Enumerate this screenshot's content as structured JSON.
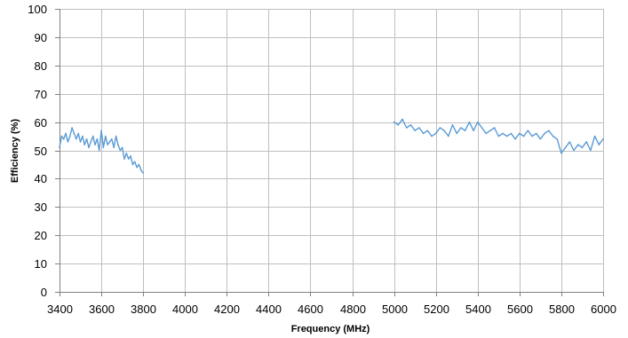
{
  "chart_data": {
    "type": "line",
    "title": "",
    "xlabel": "Frequency (MHz)",
    "ylabel": "Efficiency (%)",
    "xlim": [
      3400,
      6000
    ],
    "ylim": [
      0,
      100
    ],
    "x_ticks": [
      3400,
      3600,
      3800,
      4000,
      4200,
      4400,
      4600,
      4800,
      5000,
      5200,
      5400,
      5600,
      5800,
      6000
    ],
    "y_ticks": [
      0,
      10,
      20,
      30,
      40,
      50,
      60,
      70,
      80,
      90,
      100
    ],
    "grid": true,
    "legend": "none",
    "colors": {
      "series": "#5b9bd5",
      "grid": "#bfbfbf",
      "axis": "#808080"
    },
    "series": [
      {
        "x": [
          3400,
          3410,
          3420,
          3430,
          3440,
          3450,
          3460,
          3470,
          3480,
          3490,
          3500,
          3510,
          3520,
          3530,
          3540,
          3550,
          3560,
          3570,
          3580,
          3590,
          3600,
          3610,
          3620,
          3630,
          3640,
          3650,
          3660,
          3670,
          3680,
          3690,
          3700,
          3710,
          3720,
          3730,
          3740,
          3750,
          3760,
          3770,
          3780,
          3790,
          3800
        ],
        "y": [
          51,
          55,
          54,
          56,
          53,
          55,
          58,
          56,
          54,
          56,
          53,
          55,
          52,
          54,
          51,
          53,
          55,
          52,
          54,
          50,
          57,
          51,
          55,
          52,
          53,
          54,
          51,
          55,
          52,
          50,
          51,
          47,
          49,
          47,
          48,
          45,
          46,
          44,
          45,
          43,
          42
        ]
      },
      {
        "x": [
          5000,
          5020,
          5040,
          5060,
          5080,
          5100,
          5120,
          5140,
          5160,
          5180,
          5200,
          5220,
          5240,
          5260,
          5280,
          5300,
          5320,
          5340,
          5360,
          5380,
          5400,
          5420,
          5440,
          5460,
          5480,
          5500,
          5520,
          5540,
          5560,
          5580,
          5600,
          5620,
          5640,
          5660,
          5680,
          5700,
          5720,
          5740,
          5760,
          5780,
          5800,
          5820,
          5840,
          5860,
          5880,
          5900,
          5920,
          5940,
          5960,
          5980,
          6000
        ],
        "y": [
          60,
          59,
          61,
          58,
          59,
          57,
          58,
          56,
          57,
          55,
          56,
          58,
          57,
          55,
          59,
          56,
          58,
          57,
          60,
          57,
          60,
          58,
          56,
          57,
          58,
          55,
          56,
          55,
          56,
          54,
          56,
          55,
          57,
          55,
          56,
          54,
          56,
          57,
          55,
          54,
          49,
          51,
          53,
          50,
          52,
          51,
          53,
          50,
          55,
          52,
          54
        ]
      }
    ]
  }
}
